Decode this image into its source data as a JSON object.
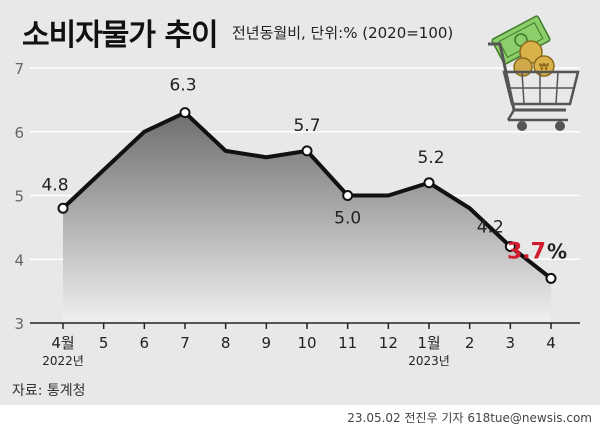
{
  "header": {
    "title": "소비자물가 추이",
    "subtitle": "전년동월비, 단위:% (2020=100)"
  },
  "footer": {
    "source": "자료: 통계청",
    "credit": "23.05.02 전진우 기자 618tue@newsis.com"
  },
  "colors": {
    "background": "#e8e8e8",
    "line": "#111111",
    "area_top": "#6e6e6e",
    "area_bottom": "#f0f0f0",
    "highlight": "#d01c2c"
  },
  "chart_data": {
    "type": "area",
    "title": "소비자물가 추이",
    "subtitle": "전년동월비, 단위:% (2020=100)",
    "categories": [
      "4월",
      "5",
      "6",
      "7",
      "8",
      "9",
      "10",
      "11",
      "12",
      "1월",
      "2",
      "3",
      "4"
    ],
    "year_labels": [
      {
        "category_index": 0,
        "label": "2022년"
      },
      {
        "category_index": 9,
        "label": "2023년"
      }
    ],
    "series": [
      {
        "values": [
          4.8,
          5.4,
          6.0,
          6.3,
          5.7,
          5.6,
          5.7,
          5.0,
          5.0,
          5.2,
          4.8,
          4.2,
          3.7
        ]
      }
    ],
    "data_labels": [
      {
        "index": 0,
        "text": "4.8"
      },
      {
        "index": 3,
        "text": "6.3"
      },
      {
        "index": 6,
        "text": "5.7"
      },
      {
        "index": 7,
        "text": "5.0"
      },
      {
        "index": 9,
        "text": "5.2"
      },
      {
        "index": 11,
        "text": "4.2"
      },
      {
        "index": 12,
        "text": "3.7",
        "unit": "%",
        "highlight": true
      }
    ],
    "marked_points": [
      0,
      3,
      6,
      7,
      9,
      11,
      12
    ],
    "y_ticks": [
      "3",
      "4",
      "5",
      "6",
      "7"
    ],
    "ylim": [
      3,
      7
    ],
    "xlabel": "",
    "ylabel": "",
    "grid": true
  },
  "illustration": {
    "icon": "shopping-cart-icon"
  }
}
